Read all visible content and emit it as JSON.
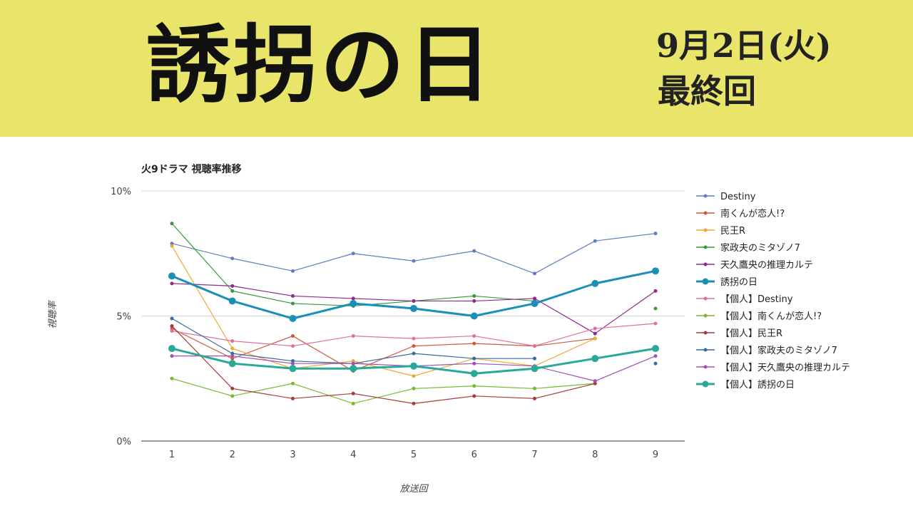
{
  "banner": {
    "title": "誘拐の日",
    "date": "9月2日(火)",
    "episode": "最終回",
    "background": "#e8e56a"
  },
  "chart_data": {
    "type": "line",
    "title": "火9ドラマ 視聴率推移",
    "xlabel": "放送回",
    "ylabel": "視聴率",
    "ylim": [
      0,
      10
    ],
    "yticks": [
      {
        "value": 0,
        "label": "0%"
      },
      {
        "value": 5,
        "label": "5%"
      },
      {
        "value": 10,
        "label": "10%"
      }
    ],
    "x": [
      1,
      2,
      3,
      4,
      5,
      6,
      7,
      8,
      9
    ],
    "grid": true,
    "legend": "right",
    "series": [
      {
        "name": "Destiny",
        "color": "#5b7fbf",
        "highlight": false,
        "values": [
          7.9,
          7.3,
          6.8,
          7.5,
          7.2,
          7.6,
          6.7,
          8.0,
          8.3
        ]
      },
      {
        "name": "南くんが恋人!?",
        "color": "#d0593a",
        "highlight": false,
        "values": [
          4.5,
          3.3,
          4.2,
          2.8,
          3.8,
          3.9,
          3.8,
          4.1,
          null
        ]
      },
      {
        "name": "民王R",
        "color": "#f0a830",
        "highlight": false,
        "values": [
          7.8,
          3.7,
          2.9,
          3.2,
          2.6,
          3.3,
          3.0,
          4.1,
          null
        ]
      },
      {
        "name": "家政夫のミタゾノ7",
        "color": "#3a9a3a",
        "highlight": false,
        "values": [
          8.7,
          6.0,
          5.5,
          5.4,
          5.6,
          5.8,
          5.6,
          null,
          5.3
        ]
      },
      {
        "name": "天久鷹央の推理カルテ",
        "color": "#8e2a8e",
        "highlight": false,
        "values": [
          6.3,
          6.2,
          5.8,
          5.7,
          5.6,
          5.6,
          5.7,
          4.3,
          6.0
        ]
      },
      {
        "name": "誘拐の日",
        "color": "#1c8fb8",
        "highlight": true,
        "values": [
          6.6,
          5.6,
          4.9,
          5.5,
          5.3,
          5.0,
          5.5,
          6.3,
          6.8
        ]
      },
      {
        "name": "【個人】Destiny",
        "color": "#e0709a",
        "highlight": false,
        "values": [
          4.4,
          4.0,
          3.8,
          4.2,
          4.1,
          4.2,
          3.8,
          4.5,
          4.7
        ]
      },
      {
        "name": "【個人】南くんが恋人!?",
        "color": "#7ab830",
        "highlight": false,
        "values": [
          2.5,
          1.8,
          2.3,
          1.5,
          2.1,
          2.2,
          2.1,
          2.3,
          null
        ]
      },
      {
        "name": "【個人】民王R",
        "color": "#a83a3a",
        "highlight": false,
        "values": [
          4.6,
          2.1,
          1.7,
          1.9,
          1.5,
          1.8,
          1.7,
          2.3,
          null
        ]
      },
      {
        "name": "【個人】家政夫のミタゾノ7",
        "color": "#3a6aa0",
        "highlight": false,
        "values": [
          4.9,
          3.5,
          3.2,
          3.1,
          3.5,
          3.3,
          3.3,
          null,
          3.1
        ]
      },
      {
        "name": "【個人】天久鷹央の推理カルテ",
        "color": "#a050b8",
        "highlight": false,
        "values": [
          3.4,
          3.4,
          3.1,
          3.1,
          3.0,
          3.1,
          3.0,
          2.4,
          3.4
        ]
      },
      {
        "name": "【個人】誘拐の日",
        "color": "#2aa898",
        "highlight": true,
        "values": [
          3.7,
          3.1,
          2.9,
          2.9,
          3.0,
          2.7,
          2.9,
          3.3,
          3.7
        ]
      }
    ]
  }
}
